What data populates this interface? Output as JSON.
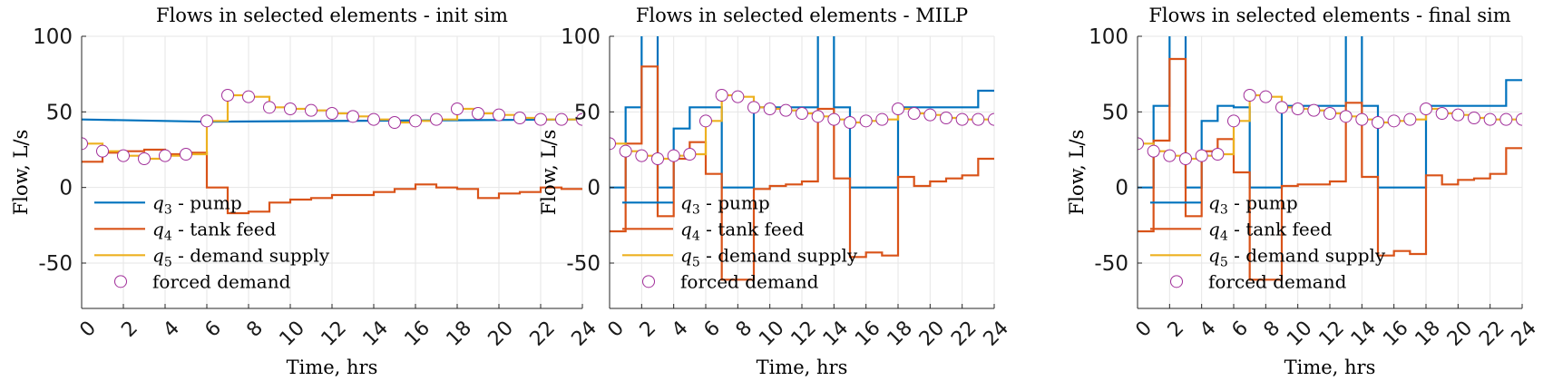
{
  "chart_data": [
    {
      "type": "line",
      "title": "Flows in selected elements - init sim",
      "xlabel": "Time, hrs",
      "ylabel": "Flow, L/s",
      "xlim": [
        0,
        24
      ],
      "ylim": [
        -80,
        100
      ],
      "xticks": [
        "0",
        "2",
        "4",
        "6",
        "8",
        "10",
        "12",
        "14",
        "16",
        "18",
        "20",
        "22",
        "24"
      ],
      "yticks": [
        "100",
        "50",
        "0",
        "-50"
      ],
      "grid": true,
      "legend_position": "bottom-left",
      "series": [
        {
          "name": "q",
          "sub": "3",
          "suffix": " - pump",
          "kind": "line",
          "color": "#0072BD",
          "x": [
            0,
            6,
            24
          ],
          "y": [
            45,
            43.5,
            45
          ]
        },
        {
          "name": "q",
          "sub": "4",
          "suffix": " - tank feed",
          "kind": "stairs",
          "color": "#D95319",
          "x": [
            0,
            1,
            2,
            3,
            4,
            5,
            6,
            7,
            8,
            9,
            10,
            11,
            12,
            13,
            14,
            15,
            16,
            17,
            18,
            19,
            20,
            21,
            22,
            23,
            24
          ],
          "y": [
            17,
            23,
            24,
            25,
            22,
            23,
            0,
            -17,
            -16,
            -10,
            -8,
            -7,
            -5,
            -5,
            -3,
            -1,
            2,
            0,
            -1,
            -7,
            -4,
            -3,
            0,
            -1,
            -1
          ]
        },
        {
          "name": "q",
          "sub": "5",
          "suffix": " - demand supply",
          "kind": "stairs",
          "color": "#EDB120",
          "x": [
            0,
            1,
            2,
            3,
            4,
            5,
            6,
            7,
            8,
            9,
            10,
            11,
            12,
            13,
            14,
            15,
            16,
            17,
            18,
            19,
            20,
            21,
            22,
            23,
            24
          ],
          "y": [
            29,
            24,
            21,
            19,
            21,
            22,
            44,
            61,
            60,
            53,
            52,
            51,
            49,
            47,
            45,
            43,
            44,
            45,
            52,
            49,
            48,
            46,
            45,
            45,
            45
          ]
        },
        {
          "name": "forced demand",
          "kind": "markers",
          "color": "#A12F9A",
          "x": [
            0,
            1,
            2,
            3,
            4,
            5,
            6,
            7,
            8,
            9,
            10,
            11,
            12,
            13,
            14,
            15,
            16,
            17,
            18,
            19,
            20,
            21,
            22,
            23,
            24
          ],
          "y": [
            29,
            24,
            21,
            19,
            21,
            22,
            44,
            61,
            60,
            53,
            52,
            51,
            49,
            47,
            45,
            43,
            44,
            45,
            52,
            49,
            48,
            46,
            45,
            45,
            45
          ]
        }
      ]
    },
    {
      "type": "line",
      "title": "Flows in selected elements - MILP",
      "xlabel": "Time, hrs",
      "ylabel": "Flow, L/s",
      "xlim": [
        0,
        24
      ],
      "ylim": [
        -80,
        100
      ],
      "xticks": [
        "0",
        "2",
        "4",
        "6",
        "8",
        "10",
        "12",
        "14",
        "16",
        "18",
        "20",
        "22",
        "24"
      ],
      "yticks": [
        "100",
        "50",
        "0",
        "-50"
      ],
      "grid": true,
      "legend_position": "bottom-left",
      "series": [
        {
          "name": "q",
          "sub": "3",
          "suffix": " - pump",
          "kind": "stairs",
          "color": "#0072BD",
          "x": [
            0,
            1,
            2,
            3,
            4,
            5,
            6,
            7,
            8,
            9,
            10,
            11,
            12,
            13,
            14,
            15,
            16,
            17,
            18,
            19,
            20,
            21,
            22,
            23,
            24
          ],
          "y": [
            0,
            53,
            130,
            0,
            39,
            53,
            53,
            0,
            0,
            53,
            53,
            53,
            53,
            130,
            53,
            0,
            0,
            0,
            53,
            53,
            53,
            53,
            53,
            64,
            64
          ]
        },
        {
          "name": "q",
          "sub": "4",
          "suffix": " - tank feed",
          "kind": "stairs",
          "color": "#D95319",
          "x": [
            0,
            1,
            2,
            3,
            4,
            5,
            6,
            7,
            8,
            9,
            10,
            11,
            12,
            13,
            14,
            15,
            16,
            17,
            18,
            19,
            20,
            21,
            22,
            23,
            24
          ],
          "y": [
            -29,
            29,
            80,
            -19,
            19,
            30,
            9,
            -61,
            -61,
            -1,
            1,
            2,
            4,
            52,
            6,
            -46,
            -43,
            -45,
            7,
            1,
            4,
            6,
            8,
            19,
            19
          ]
        },
        {
          "name": "q",
          "sub": "5",
          "suffix": " - demand supply",
          "kind": "stairs",
          "color": "#EDB120",
          "x": [
            0,
            1,
            2,
            3,
            4,
            5,
            6,
            7,
            8,
            9,
            10,
            11,
            12,
            13,
            14,
            15,
            16,
            17,
            18,
            19,
            20,
            21,
            22,
            23,
            24
          ],
          "y": [
            29,
            24,
            21,
            19,
            21,
            22,
            44,
            61,
            60,
            53,
            52,
            51,
            49,
            47,
            45,
            43,
            44,
            45,
            52,
            49,
            48,
            46,
            45,
            45,
            45
          ]
        },
        {
          "name": "forced demand",
          "kind": "markers",
          "color": "#A12F9A",
          "x": [
            0,
            1,
            2,
            3,
            4,
            5,
            6,
            7,
            8,
            9,
            10,
            11,
            12,
            13,
            14,
            15,
            16,
            17,
            18,
            19,
            20,
            21,
            22,
            23,
            24
          ],
          "y": [
            29,
            24,
            21,
            19,
            21,
            22,
            44,
            61,
            60,
            53,
            52,
            51,
            49,
            47,
            45,
            43,
            44,
            45,
            52,
            49,
            48,
            46,
            45,
            45,
            45
          ]
        }
      ]
    },
    {
      "type": "line",
      "title": "Flows in selected elements - final sim",
      "xlabel": "Time, hrs",
      "ylabel": "Flow, L/s",
      "xlim": [
        0,
        24
      ],
      "ylim": [
        -80,
        100
      ],
      "xticks": [
        "0",
        "2",
        "4",
        "6",
        "8",
        "10",
        "12",
        "14",
        "16",
        "18",
        "20",
        "22",
        "24"
      ],
      "yticks": [
        "100",
        "50",
        "0",
        "-50"
      ],
      "grid": true,
      "legend_position": "bottom-left",
      "series": [
        {
          "name": "q",
          "sub": "3",
          "suffix": " - pump",
          "kind": "stairs",
          "color": "#0072BD",
          "x": [
            0,
            1,
            2,
            3,
            4,
            5,
            6,
            7,
            8,
            9,
            10,
            11,
            12,
            13,
            14,
            15,
            16,
            17,
            18,
            19,
            20,
            21,
            22,
            23,
            24
          ],
          "y": [
            0,
            54,
            130,
            0,
            44,
            54,
            53,
            0,
            0,
            54,
            54,
            54,
            54,
            130,
            54,
            0,
            0,
            0,
            54,
            54,
            54,
            54,
            54,
            71,
            71
          ]
        },
        {
          "name": "q",
          "sub": "4",
          "suffix": " - tank feed",
          "kind": "stairs",
          "color": "#D95319",
          "x": [
            0,
            1,
            2,
            3,
            4,
            5,
            6,
            7,
            8,
            9,
            10,
            11,
            12,
            13,
            14,
            15,
            16,
            17,
            18,
            19,
            20,
            21,
            22,
            23,
            24
          ],
          "y": [
            -29,
            31,
            85,
            -19,
            24,
            32,
            10,
            -61,
            -61,
            1,
            2,
            2,
            4,
            56,
            7,
            -45,
            -42,
            -44,
            8,
            2,
            5,
            6,
            9,
            26,
            26
          ]
        },
        {
          "name": "q",
          "sub": "5",
          "suffix": " - demand supply",
          "kind": "stairs",
          "color": "#EDB120",
          "x": [
            0,
            1,
            2,
            3,
            4,
            5,
            6,
            7,
            8,
            9,
            10,
            11,
            12,
            13,
            14,
            15,
            16,
            17,
            18,
            19,
            20,
            21,
            22,
            23,
            24
          ],
          "y": [
            29,
            24,
            21,
            19,
            21,
            22,
            44,
            61,
            60,
            53,
            52,
            51,
            49,
            47,
            45,
            43,
            44,
            45,
            52,
            49,
            48,
            46,
            45,
            45,
            45
          ]
        },
        {
          "name": "forced demand",
          "kind": "markers",
          "color": "#A12F9A",
          "x": [
            0,
            1,
            2,
            3,
            4,
            5,
            6,
            7,
            8,
            9,
            10,
            11,
            12,
            13,
            14,
            15,
            16,
            17,
            18,
            19,
            20,
            21,
            22,
            23,
            24
          ],
          "y": [
            29,
            24,
            21,
            19,
            21,
            22,
            44,
            61,
            60,
            53,
            52,
            51,
            49,
            47,
            45,
            43,
            44,
            45,
            52,
            49,
            48,
            46,
            45,
            45,
            45
          ]
        }
      ]
    }
  ]
}
